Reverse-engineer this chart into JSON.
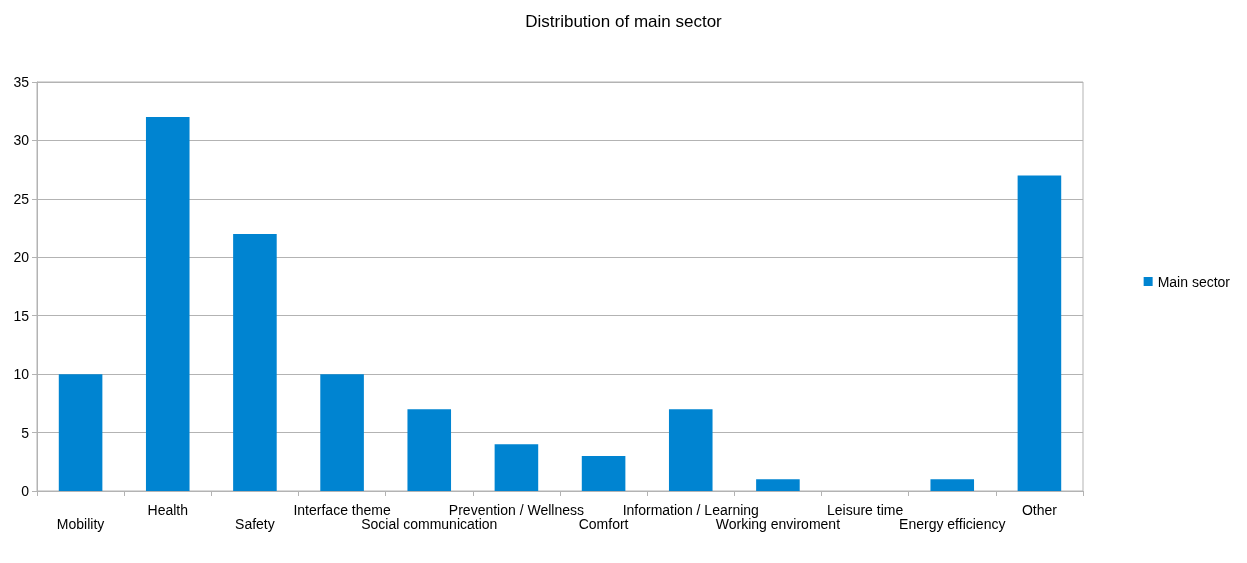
{
  "chart_data": {
    "type": "bar",
    "title": "Distribution of main sector",
    "categories": [
      "Mobility",
      "Health",
      "Safety",
      "Interface theme",
      "Social communication",
      "Prevention / Wellness",
      "Comfort",
      "Information / Learning",
      "Working enviroment",
      "Leisure time",
      "Energy efficiency",
      "Other"
    ],
    "series": [
      {
        "name": "Main sector",
        "color": "#0084d1",
        "values": [
          10,
          32,
          22,
          10,
          7,
          4,
          3,
          7,
          1,
          0,
          1,
          27
        ]
      }
    ],
    "ylim": [
      0,
      35
    ],
    "yticks": [
      0,
      5,
      10,
      15,
      20,
      25,
      30,
      35
    ],
    "grid": "y",
    "legend": "right"
  }
}
